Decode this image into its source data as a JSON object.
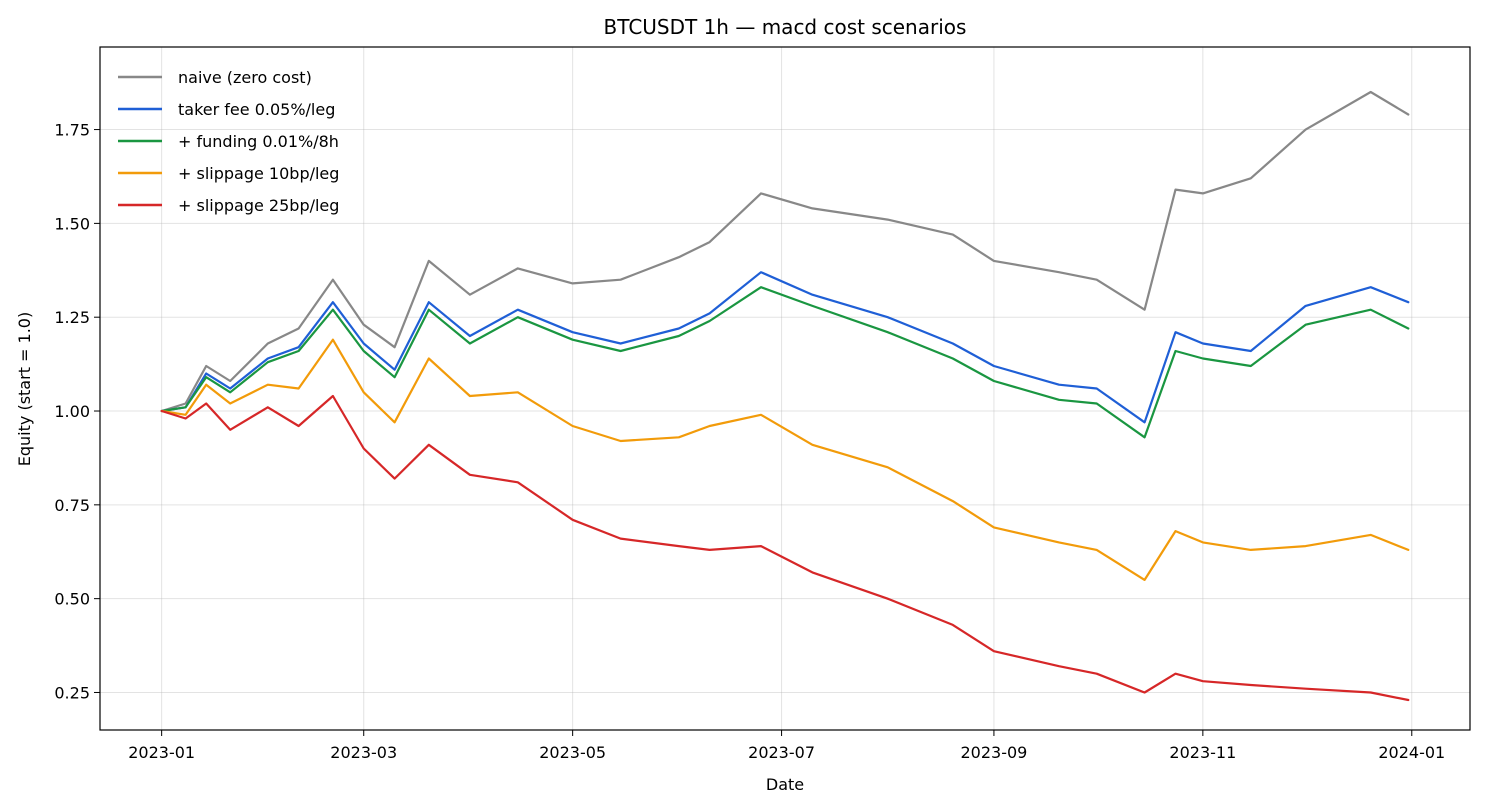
{
  "chart_data": {
    "type": "line",
    "title": "BTCUSDT 1h — macd cost scenarios",
    "xlabel": "Date",
    "ylabel": "Equity (start = 1.0)",
    "x_axis_type": "date",
    "xlim": [
      "2022-12-14",
      "2024-01-18"
    ],
    "ylim": [
      0.15,
      1.97
    ],
    "x_ticks": [
      "2023-01",
      "2023-03",
      "2023-05",
      "2023-07",
      "2023-09",
      "2023-11",
      "2024-01"
    ],
    "y_ticks": [
      "0.25",
      "0.50",
      "0.75",
      "1.00",
      "1.25",
      "1.50",
      "1.75"
    ],
    "grid": true,
    "legend_position": "upper-left",
    "x": [
      "2023-01-01",
      "2023-01-08",
      "2023-01-14",
      "2023-01-21",
      "2023-02-01",
      "2023-02-10",
      "2023-02-20",
      "2023-03-01",
      "2023-03-10",
      "2023-03-20",
      "2023-04-01",
      "2023-04-15",
      "2023-05-01",
      "2023-05-15",
      "2023-06-01",
      "2023-06-10",
      "2023-06-25",
      "2023-07-10",
      "2023-08-01",
      "2023-08-20",
      "2023-09-01",
      "2023-09-20",
      "2023-10-01",
      "2023-10-15",
      "2023-10-24",
      "2023-11-01",
      "2023-11-15",
      "2023-12-01",
      "2023-12-20",
      "2023-12-31"
    ],
    "series": [
      {
        "name": "naive (zero cost)",
        "color": "#888888",
        "values": [
          1.0,
          1.02,
          1.12,
          1.08,
          1.18,
          1.22,
          1.35,
          1.23,
          1.17,
          1.4,
          1.31,
          1.38,
          1.34,
          1.35,
          1.41,
          1.45,
          1.58,
          1.54,
          1.51,
          1.47,
          1.4,
          1.37,
          1.35,
          1.27,
          1.59,
          1.58,
          1.62,
          1.75,
          1.85,
          1.79
        ]
      },
      {
        "name": "taker fee 0.05%/leg",
        "color": "#1f5fd6",
        "values": [
          1.0,
          1.01,
          1.1,
          1.06,
          1.14,
          1.17,
          1.29,
          1.18,
          1.11,
          1.29,
          1.2,
          1.27,
          1.21,
          1.18,
          1.22,
          1.26,
          1.37,
          1.31,
          1.25,
          1.18,
          1.12,
          1.07,
          1.06,
          0.97,
          1.21,
          1.18,
          1.16,
          1.28,
          1.33,
          1.29
        ]
      },
      {
        "name": "+ funding 0.01%/8h",
        "color": "#1a9641",
        "values": [
          1.0,
          1.01,
          1.09,
          1.05,
          1.13,
          1.16,
          1.27,
          1.16,
          1.09,
          1.27,
          1.18,
          1.25,
          1.19,
          1.16,
          1.2,
          1.24,
          1.33,
          1.28,
          1.21,
          1.14,
          1.08,
          1.03,
          1.02,
          0.93,
          1.16,
          1.14,
          1.12,
          1.23,
          1.27,
          1.22
        ]
      },
      {
        "name": "+ slippage 10bp/leg",
        "color": "#f29b0a",
        "values": [
          1.0,
          0.99,
          1.07,
          1.02,
          1.07,
          1.06,
          1.19,
          1.05,
          0.97,
          1.14,
          1.04,
          1.05,
          0.96,
          0.92,
          0.93,
          0.96,
          0.99,
          0.91,
          0.85,
          0.76,
          0.69,
          0.65,
          0.63,
          0.55,
          0.68,
          0.65,
          0.63,
          0.64,
          0.67,
          0.63
        ]
      },
      {
        "name": "+ slippage 25bp/leg",
        "color": "#d62728",
        "values": [
          1.0,
          0.98,
          1.02,
          0.95,
          1.01,
          0.96,
          1.04,
          0.9,
          0.82,
          0.91,
          0.83,
          0.81,
          0.71,
          0.66,
          0.64,
          0.63,
          0.64,
          0.57,
          0.5,
          0.43,
          0.36,
          0.32,
          0.3,
          0.25,
          0.3,
          0.28,
          0.27,
          0.26,
          0.25,
          0.23
        ]
      }
    ]
  }
}
